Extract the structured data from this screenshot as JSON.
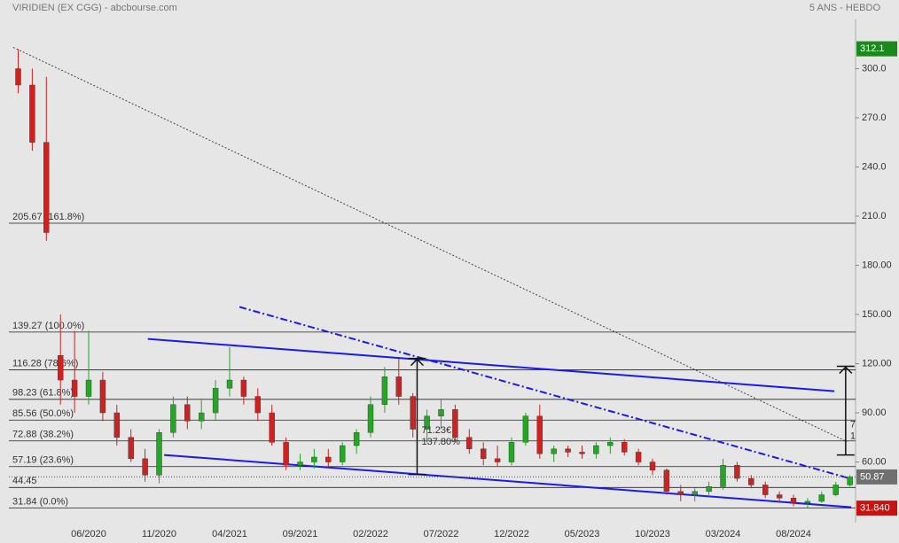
{
  "chart_data": {
    "type": "candlestick",
    "title": "VIRIDIEN (EX CGG) - abcbourse.com",
    "subtitle": "5 ANS - HEBDO",
    "categories": [
      null,
      null,
      null,
      null,
      null,
      "06/2020",
      null,
      null,
      null,
      null,
      "11/2020",
      null,
      null,
      null,
      null,
      "04/2021",
      null,
      null,
      null,
      null,
      "09/2021",
      null,
      null,
      null,
      null,
      "02/2022",
      null,
      null,
      null,
      null,
      "07/2022",
      null,
      null,
      null,
      null,
      "12/2022",
      null,
      null,
      null,
      null,
      "05/2023",
      null,
      null,
      null,
      null,
      "10/2023",
      null,
      null,
      null,
      null,
      "03/2024",
      null,
      null,
      null,
      null,
      "08/2024",
      null,
      null,
      null,
      null
    ],
    "open": [
      300,
      290,
      255,
      125,
      110,
      100,
      110,
      90,
      75,
      62,
      52,
      78,
      95,
      85,
      90,
      105,
      110,
      100,
      90,
      72,
      58,
      60,
      63,
      60,
      70,
      78,
      95,
      112,
      100,
      80,
      88,
      92,
      75,
      68,
      62,
      60,
      72,
      88,
      65,
      68,
      66,
      65,
      70,
      72,
      66,
      60,
      55,
      42,
      40,
      42,
      45,
      58,
      50,
      46,
      40,
      38,
      35,
      36,
      40,
      46
    ],
    "high": [
      312,
      300,
      295,
      150,
      140,
      140,
      115,
      95,
      80,
      68,
      80,
      100,
      100,
      98,
      110,
      130,
      112,
      105,
      95,
      75,
      65,
      68,
      68,
      72,
      80,
      100,
      118,
      123,
      102,
      92,
      98,
      95,
      80,
      72,
      70,
      75,
      90,
      95,
      70,
      70,
      70,
      72,
      75,
      74,
      68,
      62,
      56,
      46,
      44,
      48,
      62,
      60,
      52,
      48,
      42,
      40,
      38,
      42,
      48,
      52
    ],
    "low": [
      285,
      250,
      195,
      95,
      90,
      95,
      85,
      70,
      60,
      48,
      47,
      75,
      80,
      80,
      85,
      100,
      95,
      85,
      70,
      55,
      55,
      56,
      57,
      58,
      65,
      75,
      90,
      95,
      75,
      72,
      80,
      72,
      65,
      58,
      57,
      58,
      70,
      62,
      60,
      63,
      62,
      62,
      65,
      64,
      58,
      52,
      40,
      36,
      36,
      39,
      43,
      48,
      44,
      38,
      35,
      33,
      32,
      35,
      39,
      45
    ],
    "close": [
      290,
      255,
      200,
      110,
      100,
      110,
      90,
      75,
      62,
      52,
      78,
      95,
      85,
      90,
      105,
      110,
      100,
      90,
      72,
      58,
      60,
      63,
      60,
      70,
      78,
      95,
      112,
      100,
      80,
      88,
      92,
      75,
      68,
      62,
      60,
      72,
      88,
      65,
      68,
      66,
      65,
      70,
      72,
      66,
      60,
      55,
      42,
      40,
      42,
      45,
      58,
      50,
      46,
      40,
      38,
      35,
      36,
      40,
      46,
      50.87
    ],
    "up_color": "#22a822",
    "down_color": "#cc2222",
    "ylim": [
      23,
      330
    ],
    "yticks": [
      {
        "value": 300,
        "label": "300.0"
      },
      {
        "value": 270,
        "label": "270.0"
      },
      {
        "value": 240,
        "label": "240.0"
      },
      {
        "value": 210,
        "label": "210.0"
      },
      {
        "value": 180,
        "label": "180.00"
      },
      {
        "value": 150,
        "label": "150.00"
      },
      {
        "value": 120,
        "label": "120.00"
      },
      {
        "value": 90,
        "label": "90.00"
      },
      {
        "value": 60,
        "label": "60.00"
      }
    ],
    "levels": [
      {
        "value": 205.67,
        "label": "205.67  (161.8%)"
      },
      {
        "value": 139.27,
        "label": "139.27  (100.0%)"
      },
      {
        "value": 116.28,
        "label": "116.28  (78.6%)"
      },
      {
        "value": 98.23,
        "label": "98.23  (61.8%)"
      },
      {
        "value": 85.56,
        "label": "85.56  (50.0%)"
      },
      {
        "value": 72.88,
        "label": "72.88  (38.2%)"
      },
      {
        "value": 57.19,
        "label": "57.19  (23.6%)"
      },
      {
        "value": 44.45,
        "label": "44.45"
      },
      {
        "value": 31.84,
        "label": "31.84  (0.0%)"
      }
    ],
    "badges": [
      {
        "value": 312.1,
        "label": "312.1",
        "color": "#1a8a1a"
      },
      {
        "value": 50.87,
        "label": "50.87",
        "color": "#707070"
      },
      {
        "value": 31.84,
        "label": "31.840",
        "color": "#cc1111"
      }
    ],
    "trendlines": [
      {
        "x": [
          -0.35,
          58.8
        ],
        "y": [
          313,
          72.4
        ],
        "color": "#444",
        "style": "dotted"
      },
      {
        "x": [
          9.2,
          57.9
        ],
        "y": [
          135.1,
          103.2
        ],
        "color": "#1a1aee",
        "style": "solid"
      },
      {
        "x": [
          10.35,
          59.1
        ],
        "y": [
          64.3,
          32.4
        ],
        "color": "#1a1aee",
        "style": "solid"
      },
      {
        "x": [
          15.7,
          59.1
        ],
        "y": [
          154.6,
          49.7
        ],
        "color": "#1a1aee",
        "style": "dashdot"
      }
    ],
    "measures": [
      {
        "x": 28.3,
        "y": [
          52.4,
          123.2
        ],
        "texts": [
          "71.23€",
          "137.80%"
        ]
      },
      {
        "x": 58.7,
        "y": [
          64.3,
          118.4
        ],
        "texts": [
          "7",
          "1"
        ]
      }
    ]
  }
}
